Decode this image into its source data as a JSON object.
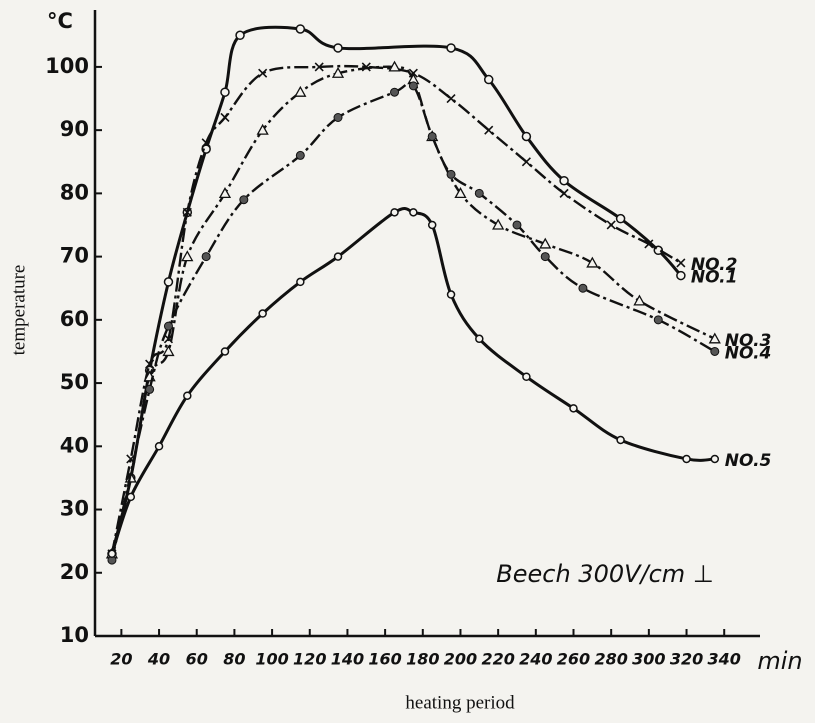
{
  "chart_data": {
    "type": "line",
    "y_unit": "°C",
    "x_unit": "min",
    "xlabel": "heating period",
    "ylabel": "temperature",
    "annotation": "Beech 300V/cm ⊥",
    "xlim": [
      6,
      359
    ],
    "ylim": [
      10,
      109
    ],
    "xticks": [
      20,
      40,
      60,
      80,
      100,
      120,
      140,
      160,
      180,
      200,
      220,
      240,
      260,
      280,
      300,
      320,
      340
    ],
    "yticks": [
      10,
      20,
      30,
      40,
      50,
      60,
      70,
      80,
      90,
      100
    ],
    "series": [
      {
        "name": "NO.1",
        "color": "#111111",
        "marker": "circle",
        "line_style": "solid",
        "x": [
          15,
          25,
          35,
          45,
          55,
          65,
          75,
          83,
          115,
          135,
          195,
          215,
          235,
          255,
          285,
          305,
          317
        ],
        "values": [
          23,
          35,
          52,
          66,
          77,
          87,
          96,
          105,
          106,
          103,
          103,
          98,
          89,
          82,
          76,
          71,
          67
        ]
      },
      {
        "name": "NO.2",
        "color": "#111111",
        "marker": "cross",
        "line_style": "dashdot",
        "x": [
          15,
          25,
          35,
          45,
          55,
          65,
          75,
          95,
          125,
          150,
          175,
          195,
          215,
          235,
          255,
          280,
          300,
          317
        ],
        "values": [
          23,
          38,
          53,
          57,
          77,
          88,
          92,
          99,
          100,
          100,
          99,
          95,
          90,
          85,
          80,
          75,
          72,
          69
        ]
      },
      {
        "name": "NO.3",
        "color": "#111111",
        "marker": "triangle",
        "line_style": "dashdot",
        "x": [
          15,
          25,
          35,
          45,
          55,
          75,
          95,
          115,
          135,
          165,
          175,
          185,
          200,
          220,
          245,
          270,
          295,
          335
        ],
        "values": [
          23,
          35,
          51,
          55,
          70,
          80,
          90,
          96,
          99,
          100,
          98,
          89,
          80,
          75,
          72,
          69,
          63,
          57
        ]
      },
      {
        "name": "NO.4",
        "color": "#111111",
        "marker": "dot",
        "line_style": "dashdot",
        "x": [
          15,
          35,
          45,
          65,
          85,
          115,
          135,
          165,
          175,
          185,
          195,
          210,
          230,
          245,
          265,
          305,
          335
        ],
        "values": [
          22,
          49,
          59,
          70,
          79,
          86,
          92,
          96,
          97,
          89,
          83,
          80,
          75,
          70,
          65,
          60,
          55
        ]
      },
      {
        "name": "NO.5",
        "color": "#111111",
        "marker": "small-circle",
        "line_style": "solid",
        "x": [
          15,
          25,
          40,
          55,
          75,
          95,
          115,
          135,
          165,
          175,
          185,
          195,
          210,
          235,
          260,
          285,
          320,
          335
        ],
        "values": [
          23,
          32,
          40,
          48,
          55,
          61,
          66,
          70,
          77,
          77,
          75,
          64,
          57,
          51,
          46,
          41,
          38,
          38
        ]
      }
    ]
  }
}
